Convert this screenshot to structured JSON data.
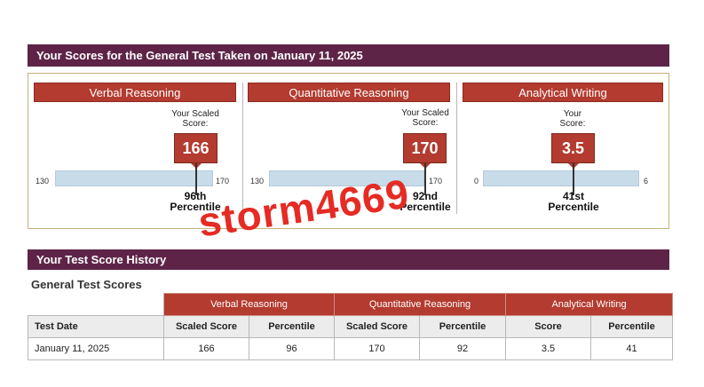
{
  "scores_banner": "Your Scores for the General Test Taken on January 11, 2025",
  "common": {
    "scaled_label": "Your Scaled\nScore:",
    "percentile_word": "Percentile"
  },
  "panels": [
    {
      "title": "Verbal Reasoning",
      "score_label": "Your Scaled\nScore:",
      "score": "166",
      "min": "130",
      "max": "170",
      "percentile": "96th",
      "score_fraction": 0.9
    },
    {
      "title": "Quantitative Reasoning",
      "score_label": "Your Scaled\nScore:",
      "score": "170",
      "min": "130",
      "max": "170",
      "percentile": "92nd",
      "score_fraction": 1.0
    },
    {
      "title": "Analytical Writing",
      "score_label": "Your\nScore:",
      "score": "3.5",
      "min": "0",
      "max": "6",
      "percentile": "41st",
      "score_fraction": 0.583
    }
  ],
  "history_banner": "Your Test Score History",
  "history_title": "General Test Scores",
  "history": {
    "groups": [
      "Verbal Reasoning",
      "Quantitative Reasoning",
      "Analytical Writing"
    ],
    "columns": [
      "Test Date",
      "Scaled Score",
      "Percentile",
      "Scaled Score",
      "Percentile",
      "Score",
      "Percentile"
    ],
    "rows": [
      [
        "January 11, 2025",
        "166",
        "96",
        "170",
        "92",
        "3.5",
        "41"
      ]
    ]
  },
  "watermark": "storm4669",
  "colors": {
    "banner": "#5e2448",
    "accent": "#b33b2f",
    "bar": "#c7dbe9"
  }
}
